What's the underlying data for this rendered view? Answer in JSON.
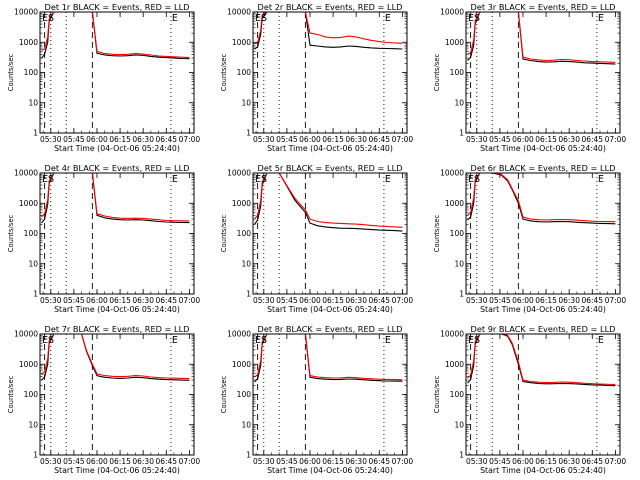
{
  "colors": {
    "events": "#000000",
    "lld": "#ff0000",
    "axis": "#000000",
    "background": "#ffffff"
  },
  "shared": {
    "xlabel": "Start Time (04-Oct-06 05:24:40)",
    "ylabel": "Counts/sec",
    "x_tick_labels": [
      "05:30",
      "05:45",
      "06:00",
      "06:15",
      "06:30",
      "06:45",
      "07:00"
    ],
    "y_tick_labels": [
      "1",
      "10",
      "100",
      "1000",
      "10000"
    ],
    "marker_left": "ES",
    "marker_right": "E"
  },
  "chart_data": [
    {
      "type": "line",
      "title": "Det 1r BLACK = Events, RED = LLD",
      "xlabel": "Start Time (04-Oct-06 05:24:40)",
      "ylabel": "Counts/sec",
      "yscale": "log",
      "ylim": [
        1,
        10000
      ],
      "xlim": [
        "05:23",
        "07:03"
      ],
      "x": [
        "05:24",
        "05:26",
        "05:28",
        "05:29",
        "05:32",
        "05:35",
        "05:40",
        "05:46",
        "05:50",
        "05:53",
        "05:57",
        "06:00",
        "06:05",
        "06:10",
        "06:15",
        "06:20",
        "06:25",
        "06:30",
        "06:35",
        "06:40",
        "06:45",
        "06:50",
        "06:55",
        "07:00"
      ],
      "series": [
        {
          "name": "LLD",
          "values": [
            550,
            600,
            1500,
            6000,
            10000,
            10000,
            10000,
            10000,
            10000,
            10000,
            10000,
            500,
            420,
            400,
            390,
            400,
            420,
            410,
            380,
            350,
            340,
            330,
            320,
            310
          ]
        },
        {
          "name": "Events",
          "values": [
            300,
            400,
            1000,
            5000,
            10000,
            10000,
            10000,
            10000,
            10000,
            10000,
            10000,
            430,
            380,
            360,
            350,
            360,
            380,
            370,
            340,
            320,
            310,
            300,
            290,
            285
          ]
        }
      ]
    },
    {
      "type": "line",
      "title": "Det 2r BLACK = Events, RED = LLD",
      "xlabel": "Start Time (04-Oct-06 05:24:40)",
      "ylabel": "Counts/sec",
      "yscale": "log",
      "ylim": [
        1,
        10000
      ],
      "xlim": [
        "05:23",
        "07:03"
      ],
      "x": [
        "05:24",
        "05:26",
        "05:28",
        "05:29",
        "05:32",
        "05:35",
        "05:40",
        "05:46",
        "05:50",
        "05:53",
        "05:57",
        "06:00",
        "06:05",
        "06:10",
        "06:15",
        "06:20",
        "06:25",
        "06:30",
        "06:35",
        "06:40",
        "06:45",
        "06:50",
        "06:55",
        "07:00"
      ],
      "series": [
        {
          "name": "LLD",
          "values": [
            900,
            950,
            2500,
            8000,
            10000,
            10000,
            10000,
            10000,
            10000,
            10000,
            10000,
            2000,
            1800,
            1500,
            1400,
            1450,
            1600,
            1500,
            1300,
            1150,
            1050,
            980,
            950,
            920
          ]
        },
        {
          "name": "Events",
          "values": [
            600,
            700,
            1800,
            6000,
            10000,
            10000,
            10000,
            10000,
            10000,
            10000,
            10000,
            800,
            750,
            700,
            680,
            700,
            750,
            730,
            680,
            650,
            630,
            620,
            610,
            600
          ]
        }
      ]
    },
    {
      "type": "line",
      "title": "Det 3r BLACK = Events, RED = LLD",
      "xlabel": "Start Time (04-Oct-06 05:24:40)",
      "ylabel": "Counts/sec",
      "yscale": "log",
      "ylim": [
        1,
        10000
      ],
      "xlim": [
        "05:23",
        "07:03"
      ],
      "x": [
        "05:24",
        "05:26",
        "05:28",
        "05:29",
        "05:32",
        "05:35",
        "05:40",
        "05:46",
        "05:50",
        "05:53",
        "05:57",
        "06:00",
        "06:05",
        "06:10",
        "06:15",
        "06:20",
        "06:25",
        "06:30",
        "06:35",
        "06:40",
        "06:45",
        "06:50",
        "06:55",
        "07:00"
      ],
      "series": [
        {
          "name": "LLD",
          "values": [
            400,
            450,
            1200,
            5000,
            10000,
            10000,
            10000,
            10000,
            10000,
            10000,
            10000,
            320,
            280,
            260,
            250,
            255,
            270,
            265,
            250,
            240,
            230,
            225,
            220,
            215
          ]
        },
        {
          "name": "Events",
          "values": [
            250,
            320,
            800,
            4000,
            10000,
            10000,
            10000,
            10000,
            10000,
            10000,
            10000,
            280,
            250,
            230,
            220,
            225,
            235,
            230,
            220,
            210,
            205,
            200,
            195,
            190
          ]
        }
      ]
    },
    {
      "type": "line",
      "title": "Det 4r BLACK = Events, RED = LLD",
      "xlabel": "Start Time (04-Oct-06 05:24:40)",
      "ylabel": "Counts/sec",
      "yscale": "log",
      "ylim": [
        1,
        10000
      ],
      "xlim": [
        "05:23",
        "07:03"
      ],
      "x": [
        "05:24",
        "05:26",
        "05:28",
        "05:29",
        "05:32",
        "05:35",
        "05:40",
        "05:46",
        "05:50",
        "05:53",
        "05:57",
        "06:00",
        "06:05",
        "06:10",
        "06:15",
        "06:20",
        "06:25",
        "06:30",
        "06:35",
        "06:40",
        "06:45",
        "06:50",
        "06:55",
        "07:00"
      ],
      "series": [
        {
          "name": "LLD",
          "values": [
            350,
            450,
            1300,
            5500,
            10000,
            10000,
            10000,
            10000,
            10000,
            10000,
            10000,
            450,
            380,
            340,
            320,
            315,
            320,
            315,
            300,
            285,
            270,
            265,
            262,
            260
          ]
        },
        {
          "name": "Events",
          "values": [
            220,
            300,
            900,
            4500,
            10000,
            10000,
            10000,
            10000,
            10000,
            10000,
            10000,
            400,
            330,
            300,
            285,
            280,
            285,
            280,
            265,
            250,
            240,
            235,
            232,
            230
          ]
        }
      ]
    },
    {
      "type": "line",
      "title": "Det 5r BLACK = Events, RED = LLD",
      "xlabel": "Start Time (04-Oct-06 05:24:40)",
      "ylabel": "Counts/sec",
      "yscale": "log",
      "ylim": [
        1,
        10000
      ],
      "xlim": [
        "05:23",
        "07:03"
      ],
      "x": [
        "05:24",
        "05:26",
        "05:28",
        "05:29",
        "05:32",
        "05:35",
        "05:40",
        "05:46",
        "05:50",
        "05:53",
        "05:57",
        "06:00",
        "06:05",
        "06:10",
        "06:15",
        "06:20",
        "06:25",
        "06:30",
        "06:35",
        "06:40",
        "06:45",
        "06:50",
        "06:55",
        "07:00"
      ],
      "series": [
        {
          "name": "LLD",
          "values": [
            300,
            400,
            1200,
            5000,
            10000,
            10000,
            10000,
            3200,
            1500,
            1000,
            600,
            300,
            250,
            230,
            220,
            215,
            210,
            205,
            195,
            185,
            175,
            170,
            165,
            160
          ]
        },
        {
          "name": "Events",
          "values": [
            200,
            280,
            800,
            4000,
            10000,
            10000,
            10000,
            3000,
            1300,
            850,
            500,
            220,
            180,
            165,
            155,
            150,
            148,
            145,
            140,
            135,
            130,
            128,
            125,
            120
          ]
        }
      ]
    },
    {
      "type": "line",
      "title": "Det 6r BLACK = Events, RED = LLD",
      "xlabel": "Start Time (04-Oct-06 05:24:40)",
      "ylabel": "Counts/sec",
      "yscale": "log",
      "ylim": [
        1,
        10000
      ],
      "xlim": [
        "05:23",
        "07:03"
      ],
      "x": [
        "05:24",
        "05:26",
        "05:28",
        "05:29",
        "05:32",
        "05:35",
        "05:40",
        "05:46",
        "05:50",
        "05:53",
        "05:57",
        "06:00",
        "06:05",
        "06:10",
        "06:15",
        "06:20",
        "06:25",
        "06:30",
        "06:35",
        "06:40",
        "06:45",
        "06:50",
        "06:55",
        "07:00"
      ],
      "series": [
        {
          "name": "LLD",
          "values": [
            400,
            500,
            1500,
            6000,
            10000,
            10000,
            10000,
            9000,
            6000,
            3000,
            1200,
            350,
            300,
            285,
            280,
            285,
            290,
            285,
            275,
            265,
            255,
            250,
            248,
            245
          ]
        },
        {
          "name": "Events",
          "values": [
            280,
            350,
            1000,
            5000,
            10000,
            10000,
            10000,
            8500,
            5500,
            2800,
            1000,
            300,
            260,
            245,
            240,
            245,
            250,
            245,
            235,
            228,
            220,
            215,
            212,
            210
          ]
        }
      ]
    },
    {
      "type": "line",
      "title": "Det 7r BLACK = Events, RED = LLD",
      "xlabel": "Start Time (04-Oct-06 05:24:40)",
      "ylabel": "Counts/sec",
      "yscale": "log",
      "ylim": [
        1,
        10000
      ],
      "xlim": [
        "05:23",
        "07:03"
      ],
      "x": [
        "05:24",
        "05:26",
        "05:28",
        "05:29",
        "05:32",
        "05:35",
        "05:40",
        "05:46",
        "05:50",
        "05:53",
        "05:57",
        "06:00",
        "06:05",
        "06:10",
        "06:15",
        "06:20",
        "06:25",
        "06:30",
        "06:35",
        "06:40",
        "06:45",
        "06:50",
        "06:55",
        "07:00"
      ],
      "series": [
        {
          "name": "LLD",
          "values": [
            450,
            550,
            1500,
            6000,
            10000,
            10000,
            10000,
            10000,
            10000,
            3000,
            1000,
            480,
            420,
            400,
            390,
            400,
            420,
            410,
            380,
            360,
            350,
            345,
            340,
            335
          ]
        },
        {
          "name": "Events",
          "values": [
            300,
            380,
            1000,
            5000,
            10000,
            10000,
            10000,
            10000,
            10000,
            2800,
            900,
            420,
            370,
            350,
            340,
            350,
            370,
            360,
            335,
            320,
            312,
            305,
            300,
            295
          ]
        }
      ]
    },
    {
      "type": "line",
      "title": "Det 8r BLACK = Events, RED = LLD",
      "xlabel": "Start Time (04-Oct-06 05:24:40)",
      "ylabel": "Counts/sec",
      "yscale": "log",
      "ylim": [
        1,
        10000
      ],
      "xlim": [
        "05:23",
        "07:03"
      ],
      "x": [
        "05:24",
        "05:26",
        "05:28",
        "05:29",
        "05:32",
        "05:35",
        "05:40",
        "05:46",
        "05:50",
        "05:53",
        "05:57",
        "06:00",
        "06:05",
        "06:10",
        "06:15",
        "06:20",
        "06:25",
        "06:30",
        "06:35",
        "06:40",
        "06:45",
        "06:50",
        "06:55",
        "07:00"
      ],
      "series": [
        {
          "name": "LLD",
          "values": [
            380,
            450,
            1300,
            5500,
            10000,
            10000,
            10000,
            10000,
            10000,
            10000,
            10000,
            420,
            380,
            360,
            350,
            355,
            370,
            360,
            340,
            330,
            320,
            315,
            310,
            305
          ]
        },
        {
          "name": "Events",
          "values": [
            260,
            330,
            900,
            4500,
            10000,
            10000,
            10000,
            10000,
            10000,
            10000,
            10000,
            370,
            335,
            320,
            310,
            315,
            325,
            320,
            305,
            295,
            285,
            280,
            278,
            275
          ]
        }
      ]
    },
    {
      "type": "line",
      "title": "Det 9r BLACK = Events, RED = LLD",
      "xlabel": "Start Time (04-Oct-06 05:24:40)",
      "ylabel": "Counts/sec",
      "yscale": "log",
      "ylim": [
        1,
        10000
      ],
      "xlim": [
        "05:23",
        "07:03"
      ],
      "x": [
        "05:24",
        "05:26",
        "05:28",
        "05:29",
        "05:32",
        "05:35",
        "05:40",
        "05:46",
        "05:50",
        "05:53",
        "05:57",
        "06:00",
        "06:05",
        "06:10",
        "06:15",
        "06:20",
        "06:25",
        "06:30",
        "06:35",
        "06:40",
        "06:45",
        "06:50",
        "06:55",
        "07:00"
      ],
      "series": [
        {
          "name": "LLD",
          "values": [
            350,
            430,
            1300,
            5500,
            10000,
            10000,
            10000,
            10000,
            9000,
            5000,
            1200,
            300,
            270,
            255,
            250,
            252,
            258,
            255,
            245,
            235,
            228,
            222,
            218,
            215
          ]
        },
        {
          "name": "Events",
          "values": [
            240,
            310,
            900,
            4500,
            10000,
            10000,
            10000,
            10000,
            8500,
            4500,
            1000,
            270,
            245,
            232,
            225,
            228,
            233,
            230,
            222,
            215,
            208,
            204,
            200,
            196
          ]
        }
      ]
    }
  ]
}
